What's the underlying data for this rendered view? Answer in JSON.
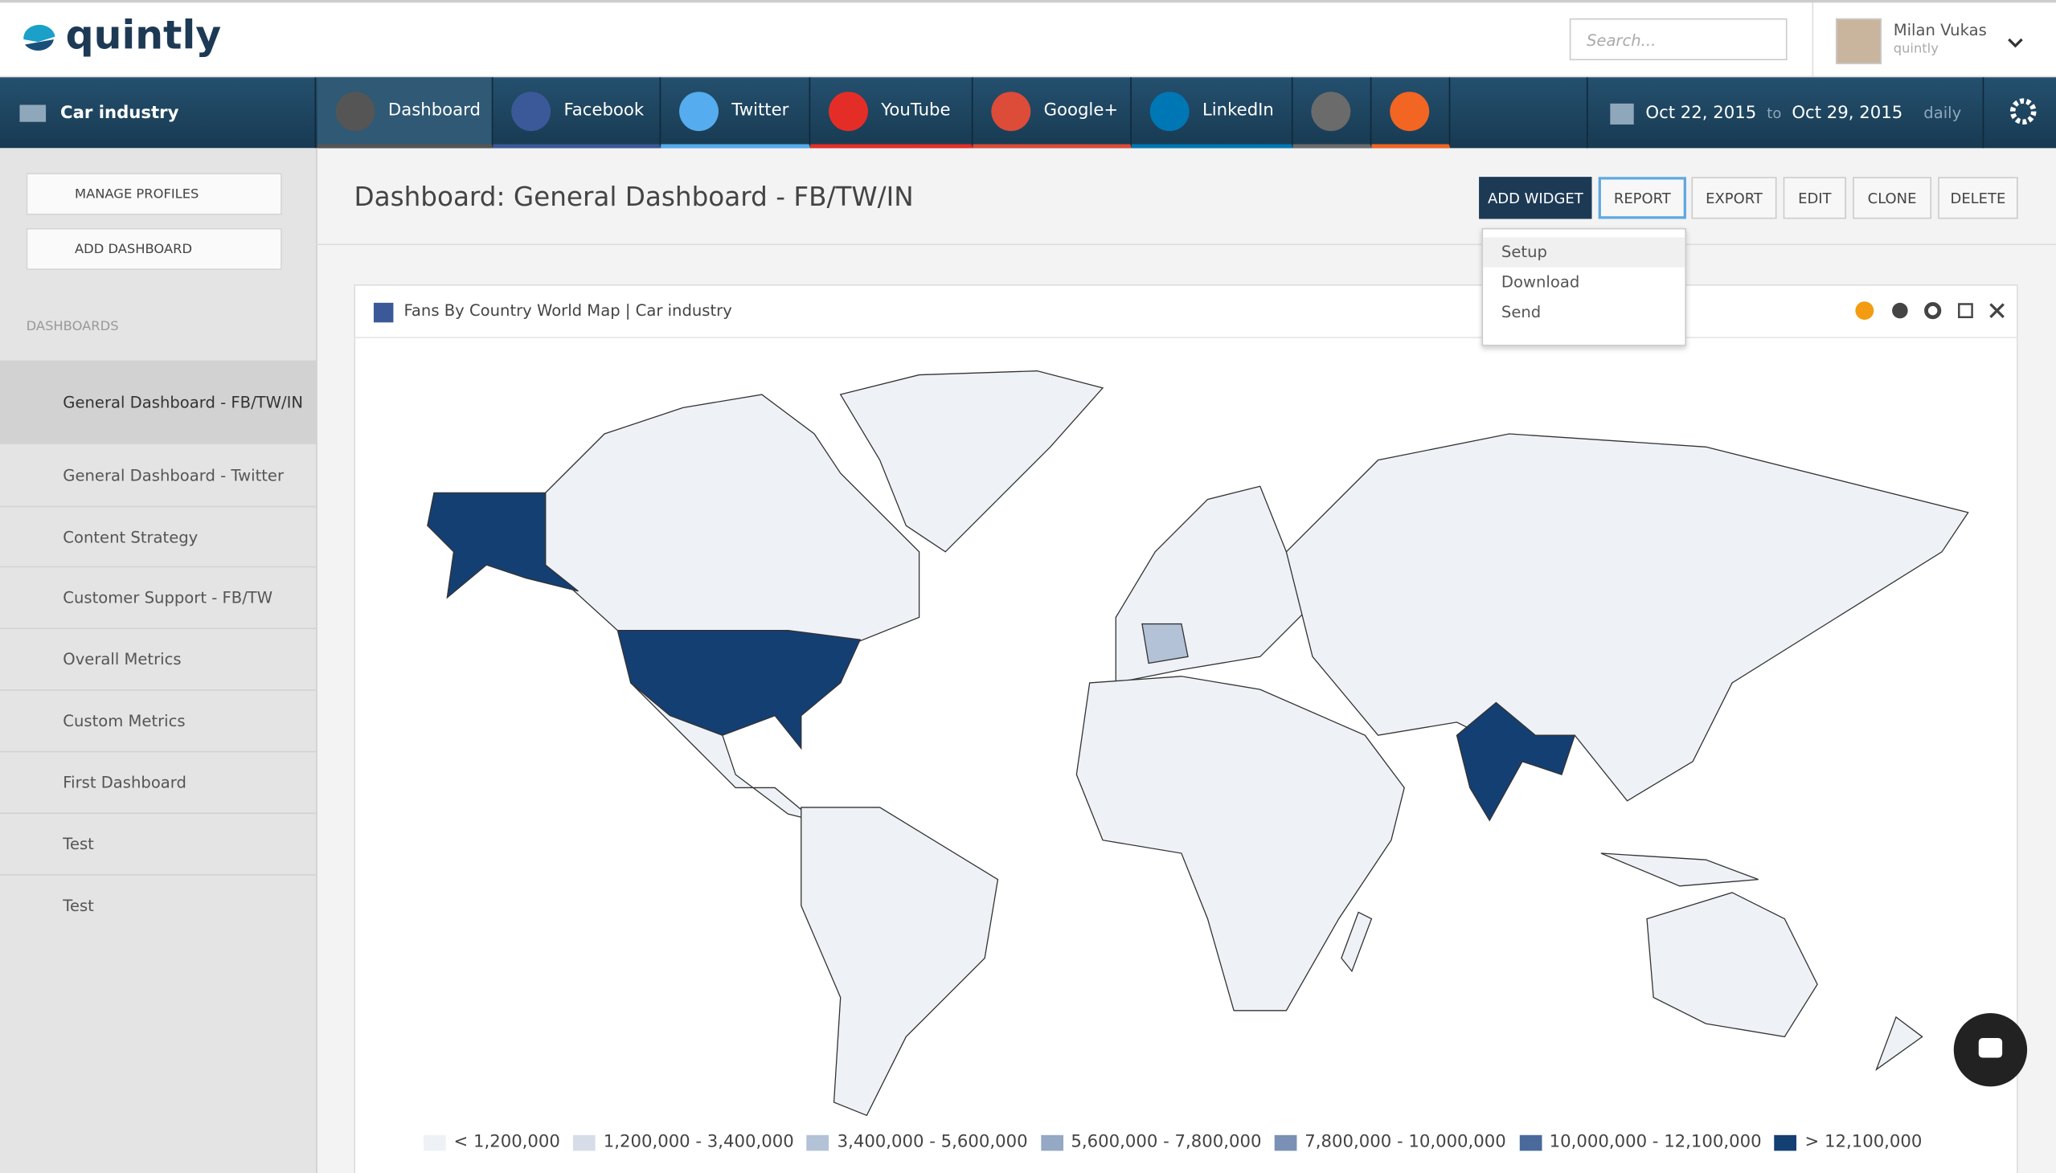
{
  "header": {
    "logo": "quintly",
    "search_placeholder": "Search...",
    "user_name": "Milan Vukas",
    "user_company": "quintly"
  },
  "nav": {
    "profile_group": "Car industry",
    "tabs": [
      {
        "label": "Dashboard",
        "color": "#555555"
      },
      {
        "label": "Facebook",
        "color": "#3b5998"
      },
      {
        "label": "Twitter",
        "color": "#55acee"
      },
      {
        "label": "YouTube",
        "color": "#e52d27"
      },
      {
        "label": "Google+",
        "color": "#dd4b39"
      },
      {
        "label": "LinkedIn",
        "color": "#0077b5"
      },
      {
        "label": null,
        "color": "#6b6b6b"
      },
      {
        "label": null,
        "color": "#f26522"
      }
    ],
    "date_from": "Oct 22, 2015",
    "date_to_word": "to",
    "date_to": "Oct 29, 2015",
    "interval": "daily"
  },
  "sidebar": {
    "buttons": [
      "MANAGE PROFILES",
      "ADD DASHBOARD"
    ],
    "section": "DASHBOARDS",
    "items": [
      "General Dashboard - FB/TW/IN",
      "General Dashboard - Twitter",
      "Content Strategy",
      "Customer Support - FB/TW",
      "Overall Metrics",
      "Custom Metrics",
      "First Dashboard",
      "Test",
      "Test"
    ]
  },
  "main": {
    "title": "Dashboard: General Dashboard - FB/TW/IN",
    "actions": [
      "ADD WIDGET",
      "REPORT",
      "EXPORT",
      "EDIT",
      "CLONE",
      "DELETE"
    ],
    "report_menu": [
      "Setup",
      "Download",
      "Send"
    ],
    "widget": {
      "title": "Fans By Country World Map | Car industry",
      "legend": [
        {
          "label": "< 1,200,000",
          "color": "#eef2f7"
        },
        {
          "label": "1,200,000 - 3,400,000",
          "color": "#d6dde9"
        },
        {
          "label": "3,400,000 - 5,600,000",
          "color": "#b3c2d6"
        },
        {
          "label": "5,600,000 - 7,800,000",
          "color": "#95a8c4"
        },
        {
          "label": "7,800,000 - 10,000,000",
          "color": "#7a91b5"
        },
        {
          "label": "10,000,000 - 12,100,000",
          "color": "#4a6a9c"
        },
        {
          "label": "> 12,100,000",
          "color": "#143f73"
        }
      ]
    }
  }
}
